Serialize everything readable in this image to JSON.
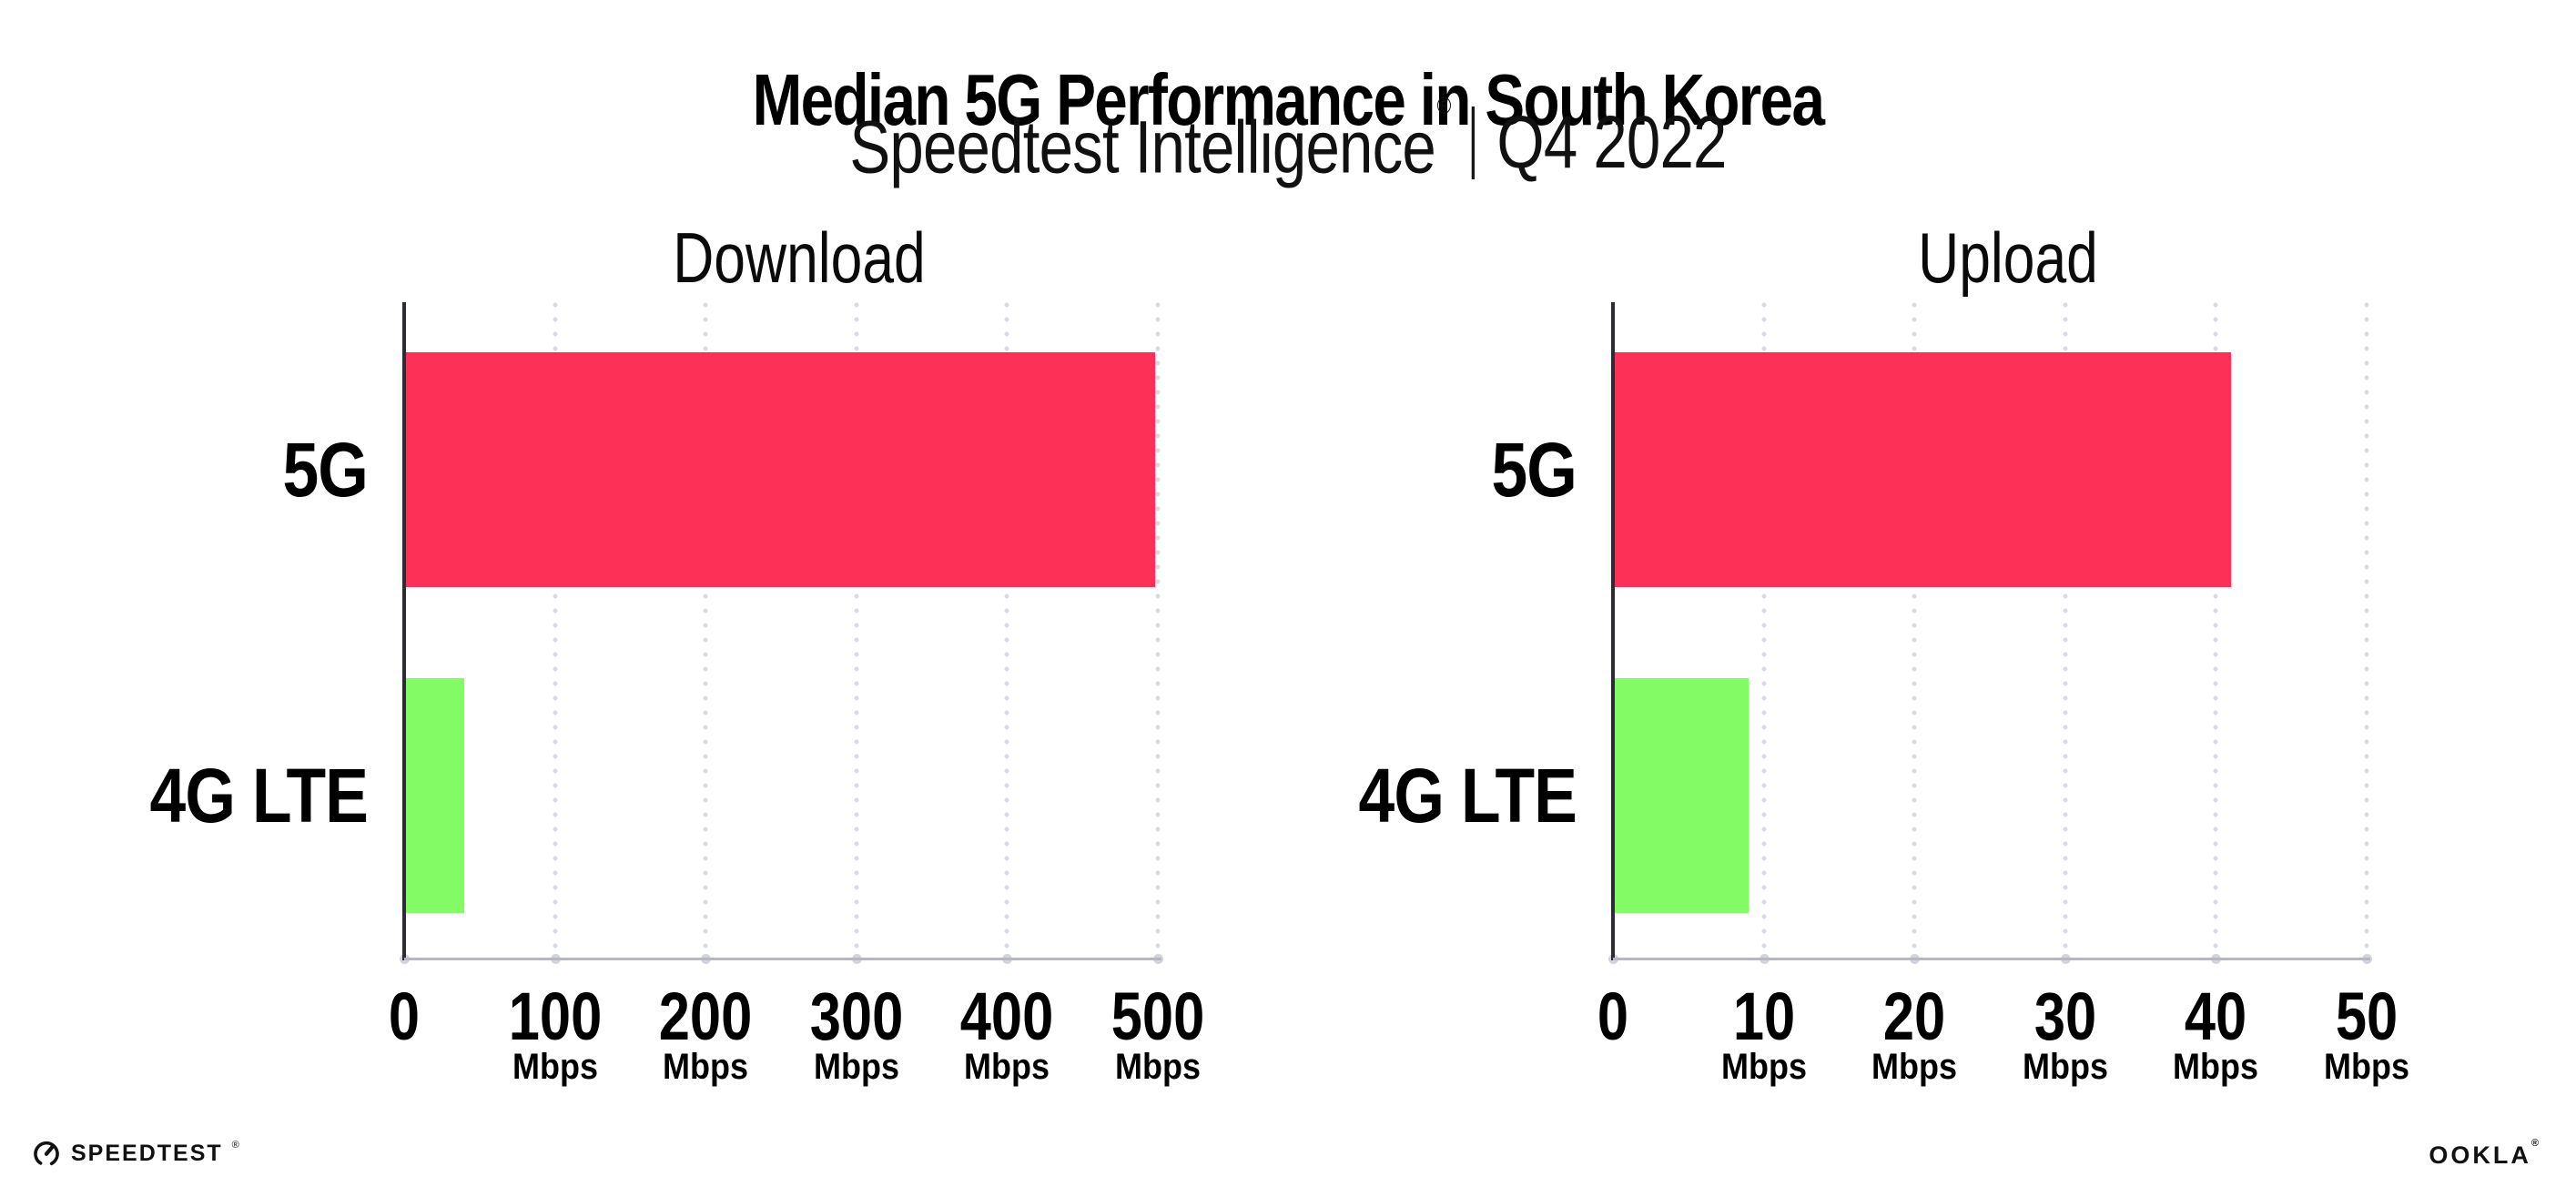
{
  "header": {
    "title": "Median 5G Performance in South Korea",
    "subtitle": {
      "brand": "Speedtest Intelligence",
      "registered": "®",
      "separator": "|",
      "period": "Q4 2022"
    }
  },
  "chart_data": [
    {
      "type": "bar",
      "orientation": "horizontal",
      "title": "Download",
      "categories": [
        "5G",
        "4G LTE"
      ],
      "values": [
        498,
        40
      ],
      "unit": "Mbps",
      "xlim": [
        0,
        500
      ],
      "xticks": [
        0,
        100,
        200,
        300,
        400,
        500
      ],
      "bar_colors": [
        "#FD3158",
        "#82FB64"
      ],
      "grid": "dotted-vertical",
      "legend": "none"
    },
    {
      "type": "bar",
      "orientation": "horizontal",
      "title": "Upload",
      "categories": [
        "5G",
        "4G LTE"
      ],
      "values": [
        41,
        9
      ],
      "unit": "Mbps",
      "xlim": [
        0,
        50
      ],
      "xticks": [
        0,
        10,
        20,
        30,
        40,
        50
      ],
      "bar_colors": [
        "#FD3158",
        "#82FB64"
      ],
      "grid": "dotted-vertical",
      "legend": "none"
    }
  ],
  "footer": {
    "speedtest": {
      "text": "SPEEDTEST",
      "mark": "®"
    },
    "ookla": {
      "text": "OOKLA",
      "mark": "®"
    }
  },
  "colors": {
    "bar_5g": "#FD3158",
    "bar_4g_lte": "#82FB64",
    "axis_dark": "#2b2b33",
    "axis_light": "#b6b7c1",
    "gridline": "#d9dae6",
    "background": "#ffffff",
    "text": "#000000"
  }
}
